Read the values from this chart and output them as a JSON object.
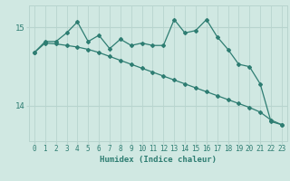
{
  "x": [
    0,
    1,
    2,
    3,
    4,
    5,
    6,
    7,
    8,
    9,
    10,
    11,
    12,
    13,
    14,
    15,
    16,
    17,
    18,
    19,
    20,
    21,
    22,
    23
  ],
  "y_jagged": [
    14.68,
    14.82,
    14.82,
    14.93,
    15.07,
    14.82,
    14.9,
    14.73,
    14.85,
    14.77,
    14.8,
    14.77,
    14.77,
    15.1,
    14.93,
    14.96,
    15.1,
    14.88,
    14.72,
    14.53,
    14.5,
    14.28,
    13.8,
    13.76
  ],
  "y_smooth": [
    14.68,
    14.8,
    14.79,
    14.77,
    14.75,
    14.72,
    14.68,
    14.63,
    14.58,
    14.53,
    14.48,
    14.43,
    14.38,
    14.33,
    14.28,
    14.23,
    14.18,
    14.13,
    14.08,
    14.03,
    13.98,
    13.92,
    13.82,
    13.76
  ],
  "line_color": "#2e7d72",
  "bg_color": "#d0e8e2",
  "grid_color": "#b8d4ce",
  "xlabel": "Humidex (Indice chaleur)",
  "yticks": [
    14,
    15
  ],
  "ylim": [
    13.55,
    15.28
  ],
  "xlim": [
    -0.5,
    23.5
  ],
  "xticks": [
    0,
    1,
    2,
    3,
    4,
    5,
    6,
    7,
    8,
    9,
    10,
    11,
    12,
    13,
    14,
    15,
    16,
    17,
    18,
    19,
    20,
    21,
    22,
    23
  ],
  "marker": "D",
  "markersize": 2.0,
  "linewidth": 0.9
}
